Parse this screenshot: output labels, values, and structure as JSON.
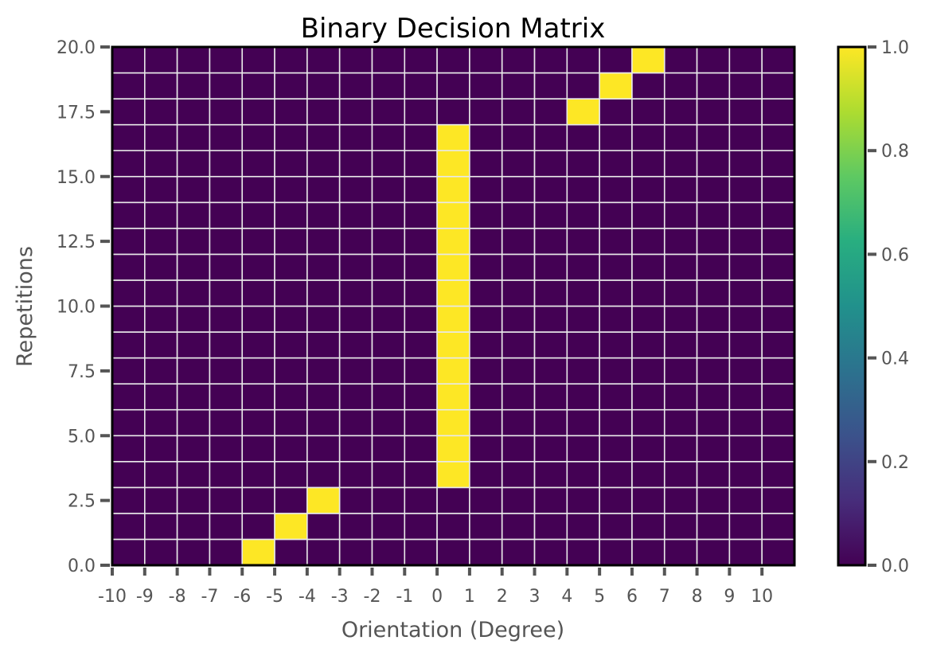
{
  "chart_data": {
    "type": "heatmap",
    "title": "Binary Decision Matrix",
    "xlabel": "Orientation (Degree)",
    "ylabel": "Repetitions",
    "x_categories": [
      "-10",
      "-9",
      "-8",
      "-7",
      "-6",
      "-5",
      "-4",
      "-3",
      "-2",
      "-1",
      "0",
      "1",
      "2",
      "3",
      "4",
      "5",
      "6",
      "7",
      "8",
      "9",
      "10"
    ],
    "x_cells": 21,
    "ylim": [
      0,
      20
    ],
    "y_ticks": [
      "0.0",
      "2.5",
      "5.0",
      "7.5",
      "10.0",
      "12.5",
      "15.0",
      "17.5",
      "20.0"
    ],
    "y_tick_values": [
      0,
      2.5,
      5,
      7.5,
      10,
      12.5,
      15,
      17.5,
      20
    ],
    "colorbar": {
      "range": [
        0.0,
        1.0
      ],
      "ticks": [
        "0.0",
        "0.2",
        "0.4",
        "0.6",
        "0.8",
        "1.0"
      ],
      "tick_values": [
        0,
        0.2,
        0.4,
        0.6,
        0.8,
        1.0
      ],
      "colormap": "viridis"
    },
    "cell_value_default": 0,
    "ones": [
      {
        "x": -6,
        "y": 0
      },
      {
        "x": -5,
        "y": 1
      },
      {
        "x": -4,
        "y": 2
      },
      {
        "x": 0,
        "y": 3
      },
      {
        "x": 0,
        "y": 4
      },
      {
        "x": 0,
        "y": 5
      },
      {
        "x": 0,
        "y": 6
      },
      {
        "x": 0,
        "y": 7
      },
      {
        "x": 0,
        "y": 8
      },
      {
        "x": 0,
        "y": 9
      },
      {
        "x": 0,
        "y": 10
      },
      {
        "x": 0,
        "y": 11
      },
      {
        "x": 0,
        "y": 12
      },
      {
        "x": 0,
        "y": 13
      },
      {
        "x": 0,
        "y": 14
      },
      {
        "x": 0,
        "y": 15
      },
      {
        "x": 0,
        "y": 16
      },
      {
        "x": 4,
        "y": 17
      },
      {
        "x": 5,
        "y": 18
      },
      {
        "x": 6,
        "y": 19
      }
    ],
    "colors": {
      "low": "#440154",
      "high": "#fde725",
      "grid": "#e8e8e8",
      "frame": "#000000"
    }
  }
}
